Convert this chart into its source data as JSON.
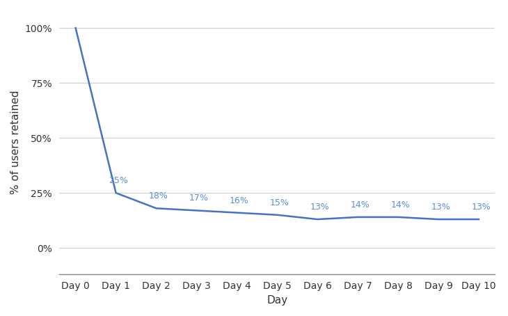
{
  "x_labels": [
    "Day 0",
    "Day 1",
    "Day 2",
    "Day 3",
    "Day 4",
    "Day 5",
    "Day 6",
    "Day 7",
    "Day 8",
    "Day 9",
    "Day 10"
  ],
  "y_values": [
    100,
    25,
    18,
    17,
    16,
    15,
    13,
    14,
    14,
    13,
    13
  ],
  "annotations": [
    "25%",
    "18%",
    "17%",
    "16%",
    "15%",
    "13%",
    "14%",
    "14%",
    "13%",
    "13%"
  ],
  "annotation_x_indices": [
    1,
    2,
    3,
    4,
    5,
    6,
    7,
    8,
    9,
    10
  ],
  "line_color": "#4472C4",
  "annotation_color": "#5B8DD9",
  "ylabel": "% of users retained",
  "xlabel": "Day",
  "yticks": [
    0,
    25,
    50,
    75,
    100
  ],
  "ytick_labels": [
    "0%",
    "25%",
    "50%",
    "75%",
    "100%"
  ],
  "background_color": "#ffffff",
  "grid_color": "#d0d0d0",
  "axis_label_color": "#333333",
  "tick_label_color": "#333333"
}
